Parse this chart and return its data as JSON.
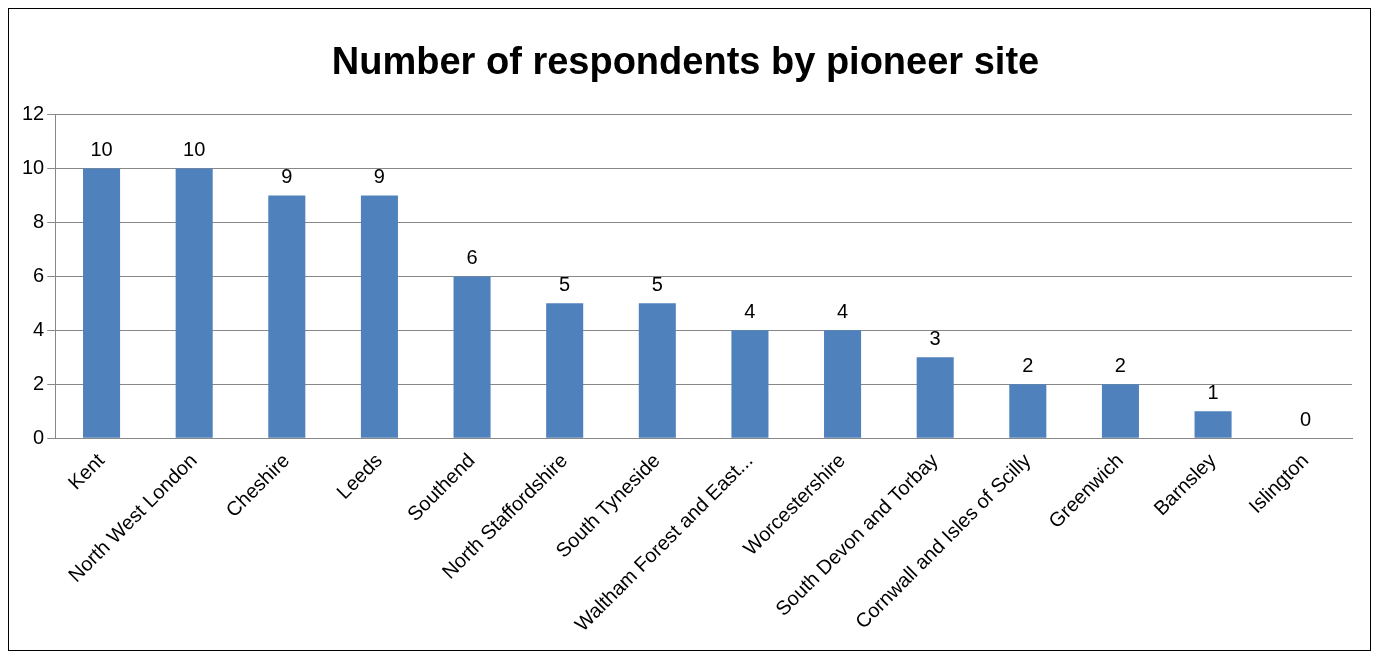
{
  "chart_data": {
    "type": "bar",
    "title": "Number of respondents by pioneer site",
    "categories": [
      "Kent",
      "North West London",
      "Cheshire",
      "Leeds",
      "Southend",
      "North Staffordshire",
      "South Tyneside",
      "Waltham Forest and East...",
      "Worcestershire",
      "South Devon and Torbay",
      "Cornwall and Isles of Scilly",
      "Greenwich",
      "Barnsley",
      "Islington"
    ],
    "values": [
      10,
      10,
      9,
      9,
      6,
      5,
      5,
      4,
      4,
      3,
      2,
      2,
      1,
      0
    ],
    "color": "#4f81bd",
    "ylim": [
      0,
      12
    ],
    "yticks": [
      0,
      2,
      4,
      6,
      8,
      10,
      12
    ],
    "grid": "y",
    "data_labels": true,
    "legend": false
  }
}
